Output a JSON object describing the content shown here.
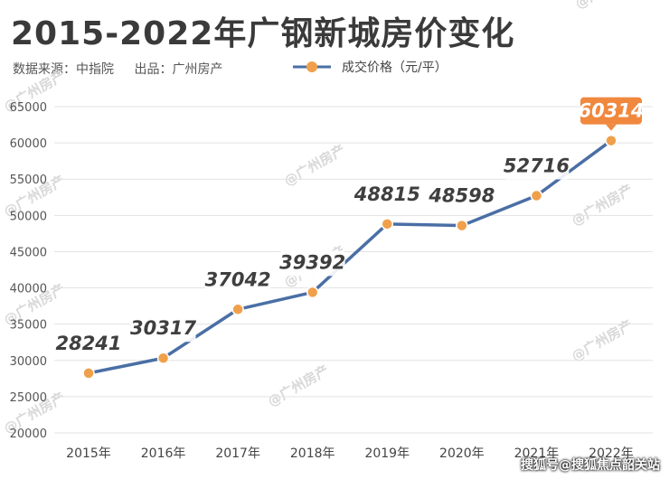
{
  "header": {
    "title": "2015-2022年广钢新城房价变化",
    "source": "数据来源：中指院",
    "publisher": "出品：广州房产"
  },
  "watermarks": {
    "brand": "@广州房产",
    "source": "搜狐号@搜狐焦点韶关站"
  },
  "colors": {
    "line": "#4a6fa5",
    "marker": "#f0a04b",
    "highlight": "#f0883e"
  },
  "chart_data": {
    "type": "line",
    "categories": [
      "2015年",
      "2016年",
      "2017年",
      "2018年",
      "2019年",
      "2020年",
      "2021年",
      "2022年"
    ],
    "series": [
      {
        "name": "成交价格（元/平）",
        "values": [
          28241,
          30317,
          37042,
          39392,
          48815,
          48598,
          52716,
          60314
        ]
      }
    ],
    "ylim": [
      20000,
      65000
    ],
    "yticks": [
      20000,
      25000,
      30000,
      35000,
      40000,
      45000,
      50000,
      55000,
      60000,
      65000
    ],
    "grid": true,
    "legend": "top",
    "highlight_index": 7
  }
}
